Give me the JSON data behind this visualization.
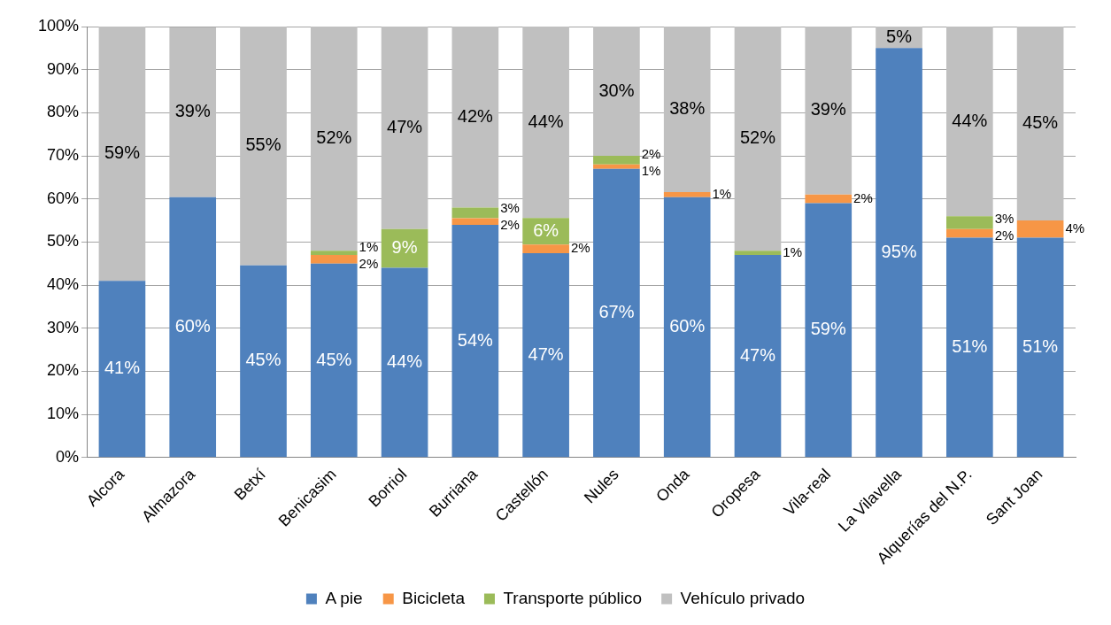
{
  "chart_data": {
    "type": "bar",
    "stacked": true,
    "categories": [
      "Alcora",
      "Almazora",
      "Betxí",
      "Benicasim",
      "Borriol",
      "Burriana",
      "Castellón",
      "Nules",
      "Onda",
      "Oropesa",
      "Vila-real",
      "La Vilavella",
      "Alquerías del N.P.",
      "Sant Joan"
    ],
    "series": [
      {
        "name": "A pie",
        "color": "#4f81bd",
        "values": [
          41,
          60.4,
          44.6,
          45,
          44,
          54,
          47.4,
          67,
          60.4,
          47,
          59,
          95,
          51,
          51
        ],
        "value_labels": [
          "41%",
          "60%",
          "45%",
          "45%",
          "44%",
          "54%",
          "47%",
          "67%",
          "60%",
          "47%",
          "59%",
          "95%",
          "51%",
          "51%"
        ]
      },
      {
        "name": "Bicicleta",
        "color": "#f79646",
        "values": [
          0,
          0,
          0,
          2,
          0,
          1.5,
          2,
          1,
          1.2,
          0,
          2,
          0,
          2,
          4
        ],
        "value_labels": [
          null,
          null,
          null,
          "2%",
          null,
          "2%",
          "2%",
          "1%",
          "1%",
          null,
          "2%",
          null,
          "2%",
          "4%"
        ]
      },
      {
        "name": "Transporte público",
        "color": "#9bbb59",
        "values": [
          0,
          0,
          0,
          1,
          9,
          2.5,
          6.2,
          2,
          0,
          1,
          0,
          0,
          3,
          0
        ],
        "value_labels": [
          null,
          null,
          null,
          "1%",
          "9%",
          "3%",
          "6%",
          "2%",
          null,
          "1%",
          null,
          null,
          "3%",
          null
        ]
      },
      {
        "name": "Vehículo privado",
        "color": "#c0c0c0",
        "values": [
          59,
          39.4,
          55.4,
          52,
          47,
          42,
          44.4,
          30,
          38.4,
          52,
          39,
          5,
          44,
          45
        ],
        "value_labels": [
          "59%",
          "39%",
          "55%",
          "52%",
          "47%",
          "42%",
          "44%",
          "30%",
          "38%",
          "52%",
          "39%",
          "5%",
          "44%",
          "45%"
        ]
      }
    ],
    "ylim": [
      0,
      100
    ],
    "yticks": [
      {
        "value": 0,
        "label": "0%"
      },
      {
        "value": 10,
        "label": "10%"
      },
      {
        "value": 20,
        "label": "20%"
      },
      {
        "value": 30,
        "label": "30%"
      },
      {
        "value": 40,
        "label": "40%"
      },
      {
        "value": 50,
        "label": "50%"
      },
      {
        "value": 60,
        "label": "60%"
      },
      {
        "value": 70,
        "label": "70%"
      },
      {
        "value": 80,
        "label": "80%"
      },
      {
        "value": 90,
        "label": "90%"
      },
      {
        "value": 100,
        "label": "100%"
      }
    ],
    "grid": "y",
    "legend": "bottom"
  }
}
